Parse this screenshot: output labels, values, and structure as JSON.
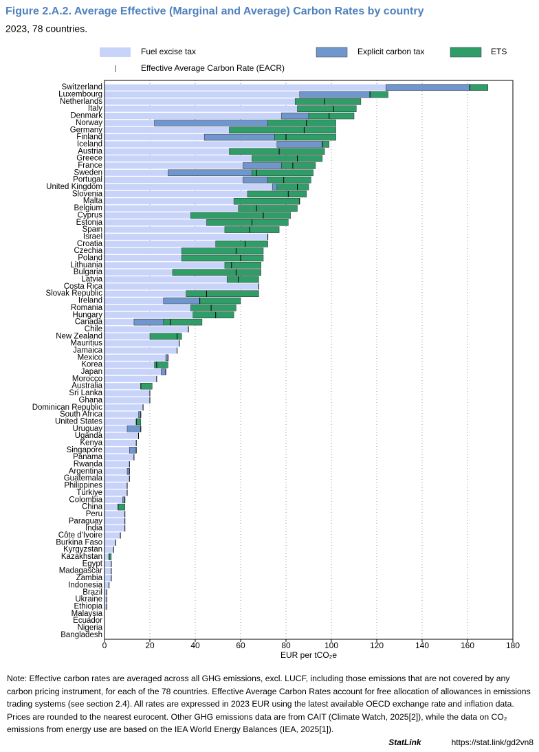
{
  "chart_data": {
    "type": "stacked-barh",
    "title": "Figure 2.A.2. Average Effective (Marginal and Average) Carbon Rates by country",
    "subtitle": "2023, 78 countries.",
    "xlabel": "EUR per tCO₂e",
    "categories": [
      "Switzerland",
      "Luxembourg",
      "Netherlands",
      "Italy",
      "Denmark",
      "Norway",
      "Germany",
      "Finland",
      "Iceland",
      "Austria",
      "Greece",
      "France",
      "Sweden",
      "Portugal",
      "United Kingdom",
      "Slovenia",
      "Malta",
      "Belgium",
      "Cyprus",
      "Estonia",
      "Spain",
      "Israel",
      "Croatia",
      "Czechia",
      "Poland",
      "Lithuania",
      "Bulgaria",
      "Latvia",
      "Costa Rica",
      "Slovak Republic",
      "Ireland",
      "Romania",
      "Hungary",
      "Canada",
      "Chile",
      "New Zealand",
      "Mauritius",
      "Jamaica",
      "Mexico",
      "Korea",
      "Japan",
      "Morocco",
      "Australia",
      "Sri Lanka",
      "Ghana",
      "Dominican Republic",
      "South Africa",
      "United States",
      "Uruguay",
      "Uganda",
      "Kenya",
      "Singapore",
      "Panama",
      "Rwanda",
      "Argentina",
      "Guatemala",
      "Philippines",
      "Türkiye",
      "Colombia",
      "China",
      "Peru",
      "Paraguay",
      "India",
      "Côte d'Ivoire",
      "Burkina Faso",
      "Kyrgyzstan",
      "Kazakhstan",
      "Egypt",
      "Madagascar",
      "Zambia",
      "Indonesia",
      "Brazil",
      "Ukraine",
      "Ethiopia",
      "Malaysia",
      "Ecuador",
      "Nigeria",
      "Bangladesh"
    ],
    "series": [
      {
        "name": "Fuel excise tax",
        "color": "#c8d3fa",
        "values": [
          124,
          86,
          84,
          85,
          78,
          22,
          55,
          44,
          76,
          55,
          65,
          61,
          28,
          61,
          74,
          63,
          57,
          59,
          38,
          45,
          53,
          72,
          49,
          34,
          34,
          53,
          30,
          54,
          68,
          36,
          26,
          38,
          39,
          13,
          37,
          20,
          33,
          32,
          27,
          22,
          25,
          23,
          16,
          20,
          20,
          17,
          15,
          14,
          10,
          15,
          14,
          11,
          13,
          11,
          10,
          11,
          10,
          10,
          8,
          6,
          9,
          9,
          9,
          7,
          5,
          4,
          2,
          3,
          3,
          3,
          2,
          1,
          1,
          1,
          0,
          0,
          0,
          0
        ]
      },
      {
        "name": "Explicit carbon tax",
        "color": "#6f97cd",
        "values": [
          37,
          31,
          0,
          0,
          12,
          50,
          0,
          31,
          20,
          0,
          0,
          17,
          37,
          11,
          2,
          0,
          0,
          0,
          0,
          0,
          0,
          0,
          0,
          0,
          0,
          0,
          0,
          0,
          0,
          0,
          16,
          0,
          0,
          13,
          0,
          0,
          0,
          0,
          1,
          0,
          2,
          0,
          0,
          0,
          0,
          0,
          1,
          0,
          6,
          0,
          0,
          3,
          0,
          0,
          1,
          0,
          0,
          0,
          1,
          0,
          0,
          0,
          0,
          0,
          0,
          0,
          0,
          0,
          0,
          0,
          0,
          0,
          0,
          0,
          0,
          0,
          0,
          0
        ]
      },
      {
        "name": "ETS",
        "color": "#2e9d68",
        "values": [
          8,
          8,
          29,
          26,
          20,
          30,
          47,
          27,
          3,
          42,
          31,
          15,
          27,
          19,
          14,
          26,
          29,
          26,
          44,
          36,
          24,
          0,
          23,
          36,
          36,
          16,
          39,
          14,
          0,
          32,
          18,
          20,
          18,
          17,
          0,
          14,
          0,
          0,
          0,
          6,
          0,
          0,
          5,
          0,
          0,
          0,
          0,
          2,
          0,
          0,
          0,
          0,
          0,
          0,
          0,
          0,
          0,
          0,
          0,
          3,
          0,
          0,
          0,
          0,
          0,
          0,
          1,
          0,
          0,
          0,
          0,
          0,
          0,
          0,
          0,
          0,
          0,
          0
        ]
      }
    ],
    "eacr": {
      "name": "Effective Average Carbon Rate (EACR)",
      "color": "#000000",
      "values": [
        161,
        117,
        97,
        101,
        99,
        89,
        88,
        80,
        96,
        77,
        85,
        83,
        67,
        79,
        85,
        81,
        86,
        67,
        70,
        65,
        64,
        72,
        62,
        58,
        60,
        56,
        58,
        59,
        68,
        45,
        42,
        47,
        49,
        29,
        37,
        32,
        33,
        32,
        28,
        23,
        27,
        23,
        16,
        20,
        20,
        17,
        16,
        14,
        16,
        15,
        14,
        14,
        13,
        11,
        11,
        11,
        10,
        10,
        9,
        6,
        9,
        9,
        9,
        7,
        5,
        4,
        2,
        3,
        3,
        3,
        2,
        1,
        1,
        1,
        0,
        0,
        0,
        0
      ]
    },
    "xlim": [
      0,
      180
    ],
    "xticks": [
      0,
      20,
      40,
      60,
      80,
      100,
      120,
      140,
      160,
      180
    ],
    "grid": true
  },
  "note": "Note: Effective carbon rates are averaged across all GHG emissions, excl. LUCF, including those emissions that are not covered by any carbon pricing instrument, for each of the 78 countries. Effective Average Carbon Rates account for free allocation of allowances in emissions trading systems (see section 2.4). All rates are expressed in 2023 EUR using the latest available OECD exchange rate and inflation data. Prices are rounded to the nearest eurocent. Other GHG emissions data are from CAIT (Climate Watch, 2025[2]), while the data on CO₂ emissions from energy use are based on the IEA World Energy Balances (IEA, 2025[1]).",
  "statlink": {
    "brand": "StatLink",
    "url": "https://stat.link/gd2vn8"
  }
}
